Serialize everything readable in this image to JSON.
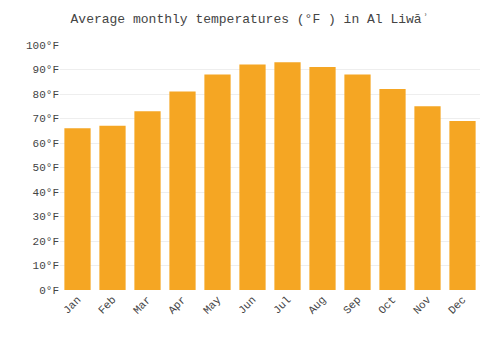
{
  "chart_data": {
    "type": "bar",
    "title": "Average monthly temperatures (°F ) in Al Liwāʾ",
    "categories": [
      "Jan",
      "Feb",
      "Mar",
      "Apr",
      "May",
      "Jun",
      "Jul",
      "Aug",
      "Sep",
      "Oct",
      "Nov",
      "Dec"
    ],
    "values": [
      66,
      67,
      73,
      81,
      88,
      92,
      93,
      91,
      88,
      82,
      75,
      69
    ],
    "color": "#F5A623",
    "ylim": [
      0,
      100
    ],
    "yticks": [
      {
        "value": 0,
        "label": "0°F"
      },
      {
        "value": 10,
        "label": "10°F"
      },
      {
        "value": 20,
        "label": "20°F"
      },
      {
        "value": 30,
        "label": "30°F"
      },
      {
        "value": 40,
        "label": "40°F"
      },
      {
        "value": 50,
        "label": "50°F"
      },
      {
        "value": 60,
        "label": "60°F"
      },
      {
        "value": 70,
        "label": "70°F"
      },
      {
        "value": 80,
        "label": "80°F"
      },
      {
        "value": 90,
        "label": "90°F"
      },
      {
        "value": 100,
        "label": "100°F"
      }
    ],
    "grid": true
  }
}
